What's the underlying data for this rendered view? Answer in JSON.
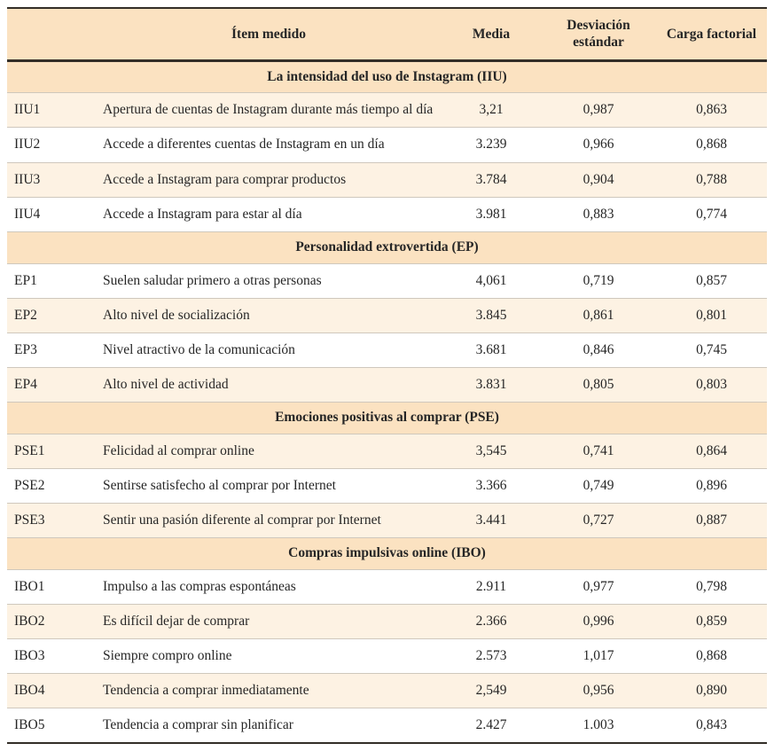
{
  "table": {
    "header": {
      "item_label": "Ítem medido",
      "media_label": "Media",
      "sd_label": "Desviación estándar",
      "load_label": "Carga factorial"
    },
    "colors": {
      "header_bg": "#fbe2c1",
      "section_bg": "#fbe2c1",
      "shaded_row_bg": "#fdf2e3",
      "row_bg": "#ffffff",
      "rule_dark": "#332e28",
      "rule_light": "#cfc8bd",
      "text": "#262626"
    },
    "sections": [
      {
        "title": "La intensidad del uso de Instagram (IIU)",
        "rows": [
          {
            "code": "IIU1",
            "item": "Apertura de cuentas de Instagram durante más tiempo al día",
            "media": "3,21",
            "sd": "0,987",
            "load": "0,863",
            "shaded": true
          },
          {
            "code": "IIU2",
            "item": "Accede a diferentes cuentas de Instagram en un día",
            "media": "3.239",
            "sd": "0,966",
            "load": "0,868",
            "shaded": false
          },
          {
            "code": "IIU3",
            "item": "Accede a Instagram para comprar productos",
            "media": "3.784",
            "sd": "0,904",
            "load": "0,788",
            "shaded": true
          },
          {
            "code": "IIU4",
            "item": "Accede a Instagram para estar al día",
            "media": "3.981",
            "sd": "0,883",
            "load": "0,774",
            "shaded": false
          }
        ]
      },
      {
        "title": "Personalidad extrovertida (EP)",
        "rows": [
          {
            "code": "EP1",
            "item": "Suelen saludar primero a otras personas",
            "media": "4,061",
            "sd": "0,719",
            "load": "0,857",
            "shaded": false
          },
          {
            "code": "EP2",
            "item": "Alto nivel de socialización",
            "media": "3.845",
            "sd": "0,861",
            "load": "0,801",
            "shaded": true
          },
          {
            "code": "EP3",
            "item": "Nivel atractivo de la comunicación",
            "media": "3.681",
            "sd": "0,846",
            "load": "0,745",
            "shaded": false
          },
          {
            "code": "EP4",
            "item": "Alto nivel de actividad",
            "media": "3.831",
            "sd": "0,805",
            "load": "0,803",
            "shaded": true
          }
        ]
      },
      {
        "title": "Emociones positivas al comprar (PSE)",
        "rows": [
          {
            "code": "PSE1",
            "item": "Felicidad al comprar online",
            "media": "3,545",
            "sd": "0,741",
            "load": "0,864",
            "shaded": true
          },
          {
            "code": "PSE2",
            "item": "Sentirse satisfecho al comprar por Internet",
            "media": "3.366",
            "sd": "0,749",
            "load": "0,896",
            "shaded": false
          },
          {
            "code": "PSE3",
            "item": "Sentir una pasión diferente al comprar por Internet",
            "media": "3.441",
            "sd": "0,727",
            "load": "0,887",
            "shaded": true
          }
        ]
      },
      {
        "title": "Compras impulsivas online (IBO)",
        "rows": [
          {
            "code": "IBO1",
            "item": "Impulso a las compras espontáneas",
            "media": "2.911",
            "sd": "0,977",
            "load": "0,798",
            "shaded": false
          },
          {
            "code": "IBO2",
            "item": "Es difícil dejar de comprar",
            "media": "2.366",
            "sd": "0,996",
            "load": "0,859",
            "shaded": true
          },
          {
            "code": "IBO3",
            "item": "Siempre compro online",
            "media": "2.573",
            "sd": "1,017",
            "load": "0,868",
            "shaded": false
          },
          {
            "code": "IBO4",
            "item": "Tendencia a comprar inmediatamente",
            "media": "2,549",
            "sd": "0,956",
            "load": "0,890",
            "shaded": true
          },
          {
            "code": "IBO5",
            "item": "Tendencia a comprar sin planificar",
            "media": "2.427",
            "sd": "1.003",
            "load": "0,843",
            "shaded": false
          }
        ]
      }
    ]
  }
}
